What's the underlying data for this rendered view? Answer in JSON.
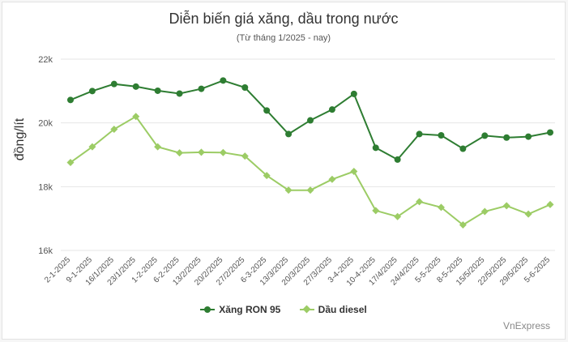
{
  "colors": {
    "ron95": "#2e7d32",
    "diesel": "#9ccc65",
    "grid": "#e6e6e6",
    "tick": "#555555"
  },
  "chart_data": {
    "type": "line",
    "title": "Diễn biến giá xăng, dầu trong nước",
    "subtitle": "(Từ tháng 1/2025 - nay)",
    "ylabel": "đồng/lít",
    "ylim": [
      16000,
      22000
    ],
    "yticks": [
      16000,
      18000,
      20000,
      22000
    ],
    "ytick_labels": [
      "16k",
      "18k",
      "20k",
      "22k"
    ],
    "grid": true,
    "legend_position": "bottom",
    "source": "VnExpress",
    "categories": [
      "2-1-2025",
      "9-1-2025",
      "16/1/2025",
      "23/1/2025",
      "1-2-2025",
      "6-2-2025",
      "13/2/2025",
      "20/2/2025",
      "27/2/2025",
      "6-3-2025",
      "13/3/2025",
      "20/3/2025",
      "27/3/2025",
      "3-4-2025",
      "10-4-2025",
      "17/4/2025",
      "24/4/2025",
      "5-5-2025",
      "8-5-2025",
      "15/5/2025",
      "22/5/2025",
      "29/5/2025",
      "5-6-2025"
    ],
    "series": [
      {
        "name": "Xăng RON 95",
        "marker": "circle",
        "values": [
          20720,
          21000,
          21220,
          21140,
          21010,
          20920,
          21070,
          21330,
          21110,
          20390,
          19650,
          20080,
          20420,
          20910,
          19220,
          18850,
          19650,
          19610,
          19190,
          19600,
          19540,
          19570,
          19700
        ]
      },
      {
        "name": "Dầu diesel",
        "marker": "diamond",
        "values": [
          18760,
          19250,
          19800,
          20200,
          19250,
          19060,
          19080,
          19070,
          18960,
          18350,
          17890,
          17890,
          18230,
          18480,
          17250,
          17060,
          17530,
          17350,
          16800,
          17220,
          17400,
          17140,
          17440
        ]
      }
    ]
  }
}
